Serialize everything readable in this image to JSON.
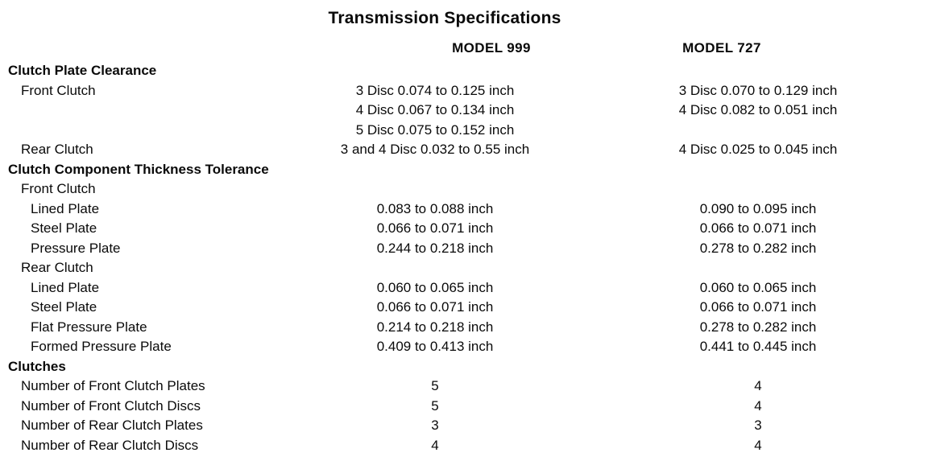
{
  "title": "Transmission Specifications",
  "columns": [
    "MODEL 999",
    "MODEL 727"
  ],
  "colors": {
    "text": "#0a0a0a",
    "background": "#ffffff"
  },
  "table": {
    "rows": [
      {
        "label": "Clutch Plate Clearance",
        "bold": true,
        "indent": 0,
        "model_999": "",
        "model_727": ""
      },
      {
        "label": "Front Clutch",
        "bold": false,
        "indent": 1,
        "model_999": "3 Disc 0.074 to 0.125 inch\n4 Disc 0.067 to 0.134 inch\n5 Disc 0.075 to 0.152 inch",
        "model_727": "3 Disc 0.070 to 0.129 inch\n4 Disc 0.082 to 0.051 inch"
      },
      {
        "label": "Rear Clutch",
        "bold": false,
        "indent": 1,
        "model_999": "3 and 4 Disc 0.032 to 0.55 inch",
        "model_727": "4 Disc 0.025 to 0.045 inch"
      },
      {
        "label": "Clutch Component Thickness Tolerance",
        "bold": true,
        "indent": 0,
        "model_999": "",
        "model_727": ""
      },
      {
        "label": "Front Clutch",
        "bold": false,
        "indent": 1,
        "model_999": "",
        "model_727": ""
      },
      {
        "label": "Lined Plate",
        "bold": false,
        "indent": 2,
        "model_999": "0.083 to 0.088 inch",
        "model_727": "0.090 to 0.095 inch"
      },
      {
        "label": "Steel Plate",
        "bold": false,
        "indent": 2,
        "model_999": "0.066 to 0.071 inch",
        "model_727": "0.066 to 0.071 inch"
      },
      {
        "label": "Pressure Plate",
        "bold": false,
        "indent": 2,
        "model_999": "0.244 to 0.218 inch",
        "model_727": "0.278 to 0.282 inch"
      },
      {
        "label": "Rear Clutch",
        "bold": false,
        "indent": 1,
        "model_999": "",
        "model_727": ""
      },
      {
        "label": "Lined Plate",
        "bold": false,
        "indent": 2,
        "model_999": "0.060 to 0.065 inch",
        "model_727": "0.060 to 0.065 inch"
      },
      {
        "label": "Steel Plate",
        "bold": false,
        "indent": 2,
        "model_999": "0.066 to 0.071 inch",
        "model_727": "0.066 to 0.071 inch"
      },
      {
        "label": "Flat Pressure Plate",
        "bold": false,
        "indent": 2,
        "model_999": "0.214 to 0.218 inch",
        "model_727": "0.278 to 0.282 inch"
      },
      {
        "label": "Formed Pressure Plate",
        "bold": false,
        "indent": 2,
        "model_999": "0.409 to 0.413 inch",
        "model_727": "0.441 to 0.445 inch"
      },
      {
        "label": "Clutches",
        "bold": true,
        "indent": 0,
        "model_999": "",
        "model_727": ""
      },
      {
        "label": "Number of Front Clutch Plates",
        "bold": false,
        "indent": 1,
        "model_999": "5",
        "model_727": "4"
      },
      {
        "label": "Number of Front Clutch Discs",
        "bold": false,
        "indent": 1,
        "model_999": "5",
        "model_727": "4"
      },
      {
        "label": "Number of Rear Clutch Plates",
        "bold": false,
        "indent": 1,
        "model_999": "3",
        "model_727": "3"
      },
      {
        "label": "Number of Rear Clutch Discs",
        "bold": false,
        "indent": 1,
        "model_999": "4",
        "model_727": "4"
      }
    ]
  }
}
